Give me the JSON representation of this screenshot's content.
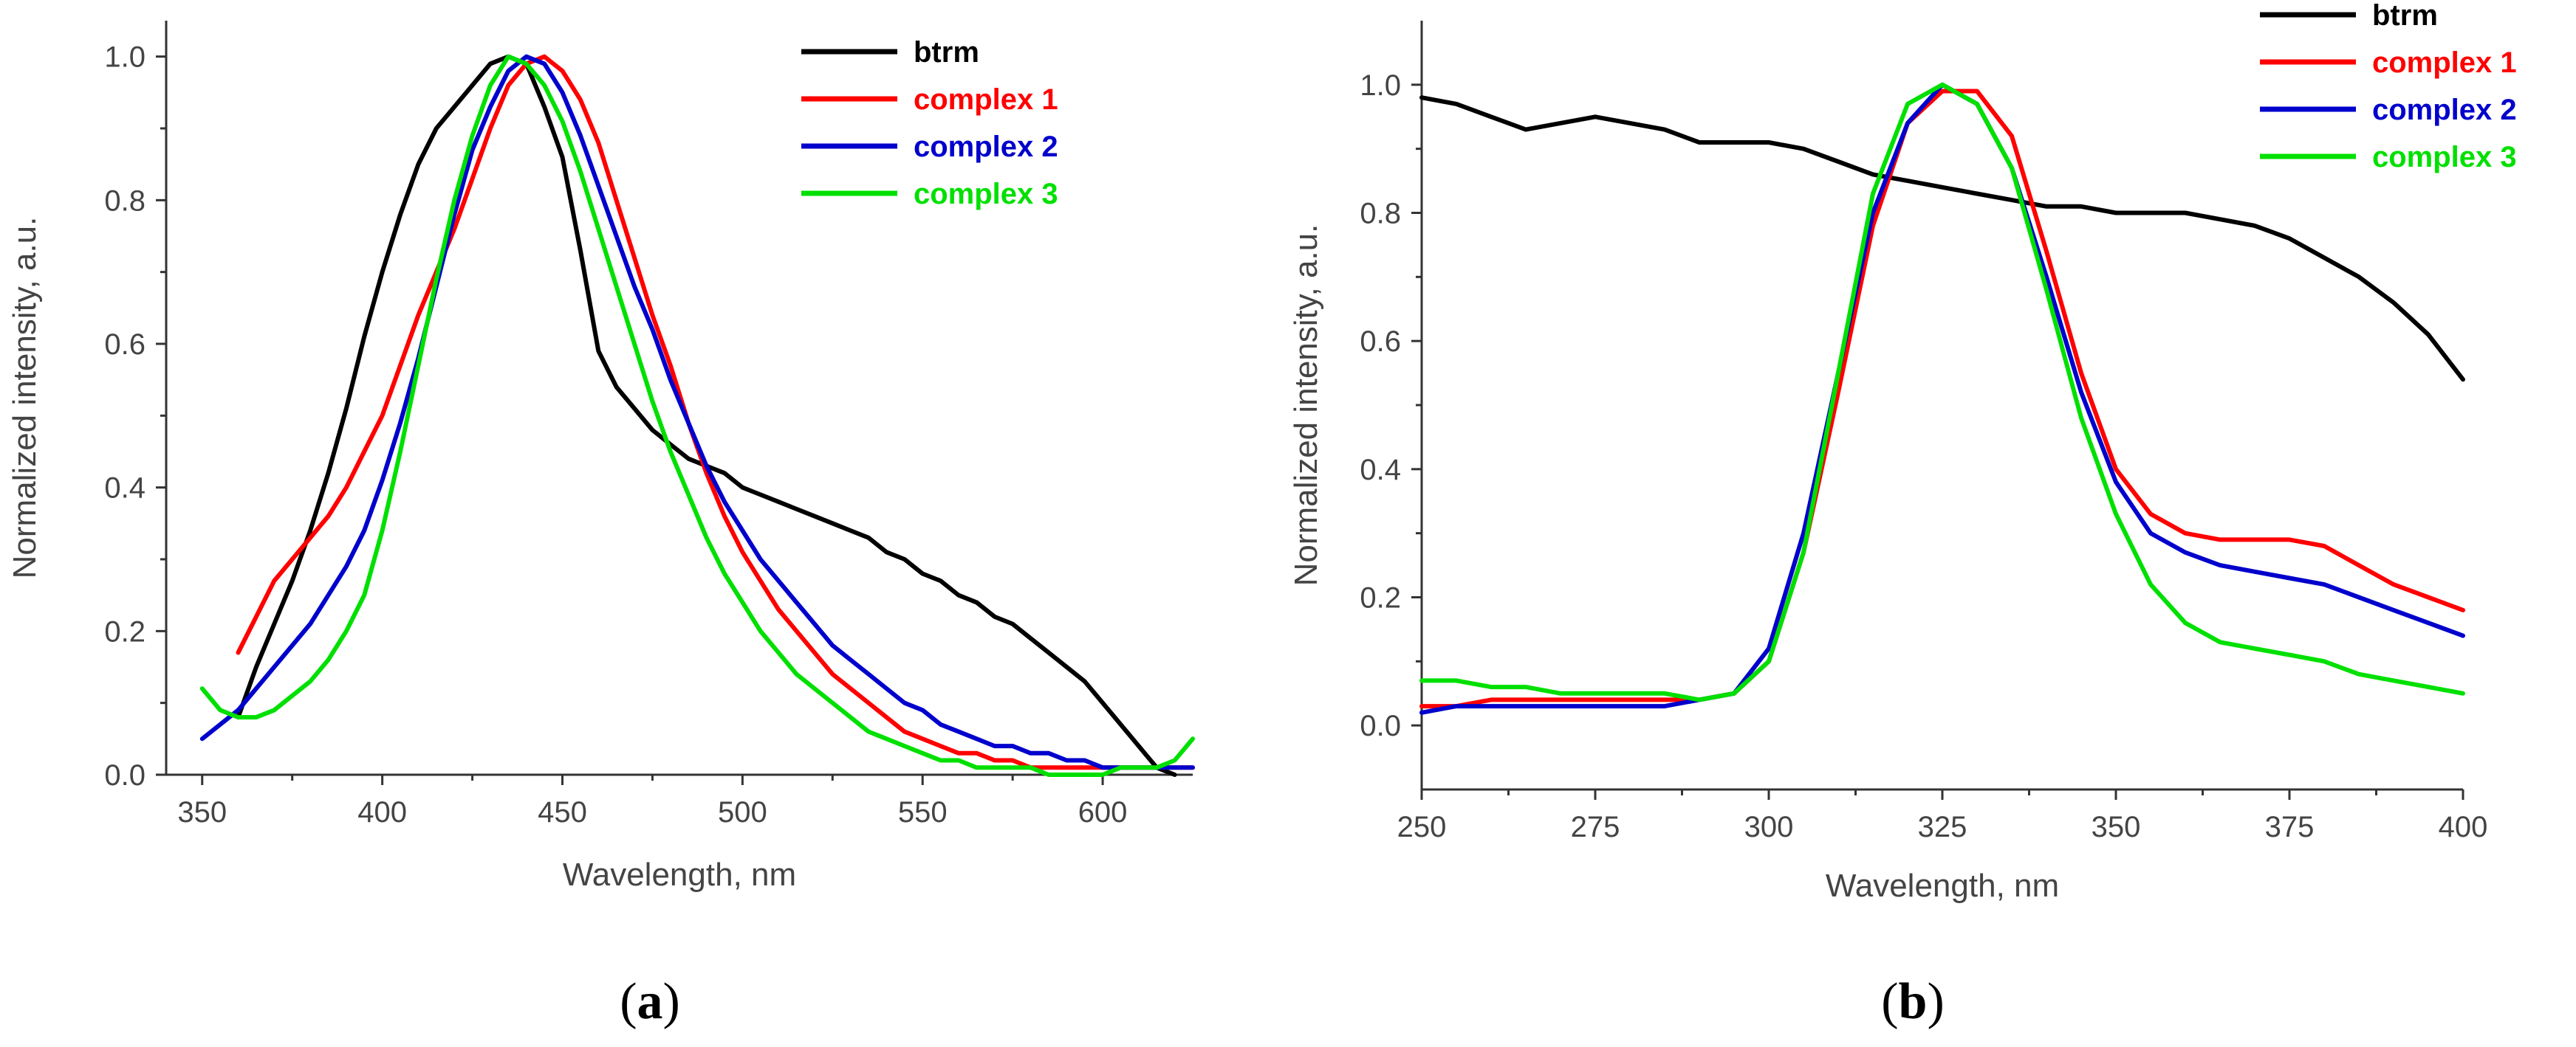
{
  "chart_data": [
    {
      "type": "line",
      "panel_label": "a",
      "xlabel": "Wavelength, nm",
      "ylabel": "Normalized intensity, a.u.",
      "xlim": [
        340,
        625
      ],
      "ylim": [
        0,
        1.05
      ],
      "xticks": [
        350,
        400,
        450,
        500,
        550,
        600
      ],
      "yticks": [
        0.0,
        0.2,
        0.4,
        0.6,
        0.8,
        1.0
      ],
      "legend_position": "top-right",
      "series": [
        {
          "name": "btrm",
          "color": "#000000",
          "x": [
            360,
            365,
            370,
            375,
            380,
            385,
            390,
            395,
            400,
            405,
            410,
            415,
            420,
            425,
            430,
            435,
            440,
            445,
            450,
            455,
            460,
            465,
            470,
            475,
            480,
            485,
            490,
            495,
            500,
            505,
            510,
            515,
            520,
            525,
            530,
            535,
            540,
            545,
            550,
            555,
            560,
            565,
            570,
            575,
            580,
            585,
            590,
            595,
            600,
            605,
            610,
            615,
            620
          ],
          "y": [
            0.08,
            0.15,
            0.21,
            0.27,
            0.34,
            0.42,
            0.51,
            0.61,
            0.7,
            0.78,
            0.85,
            0.9,
            0.93,
            0.96,
            0.99,
            1.0,
            0.99,
            0.93,
            0.86,
            0.73,
            0.59,
            0.54,
            0.51,
            0.48,
            0.46,
            0.44,
            0.43,
            0.42,
            0.4,
            0.39,
            0.38,
            0.37,
            0.36,
            0.35,
            0.34,
            0.33,
            0.31,
            0.3,
            0.28,
            0.27,
            0.25,
            0.24,
            0.22,
            0.21,
            0.19,
            0.17,
            0.15,
            0.13,
            0.1,
            0.07,
            0.04,
            0.01,
            0.0
          ]
        },
        {
          "name": "complex 1",
          "color": "#ff0000",
          "x": [
            360,
            365,
            370,
            375,
            380,
            385,
            390,
            395,
            400,
            405,
            410,
            415,
            420,
            425,
            430,
            435,
            440,
            445,
            450,
            455,
            460,
            465,
            470,
            475,
            480,
            485,
            490,
            495,
            500,
            505,
            510,
            515,
            520,
            525,
            530,
            535,
            540,
            545,
            550,
            555,
            560,
            565,
            570,
            575,
            580,
            585,
            590,
            595,
            600,
            605,
            610,
            615,
            620,
            625
          ],
          "y": [
            0.17,
            0.22,
            0.27,
            0.3,
            0.33,
            0.36,
            0.4,
            0.45,
            0.5,
            0.57,
            0.64,
            0.7,
            0.76,
            0.83,
            0.9,
            0.96,
            0.99,
            1.0,
            0.98,
            0.94,
            0.88,
            0.8,
            0.72,
            0.64,
            0.57,
            0.49,
            0.42,
            0.36,
            0.31,
            0.27,
            0.23,
            0.2,
            0.17,
            0.14,
            0.12,
            0.1,
            0.08,
            0.06,
            0.05,
            0.04,
            0.03,
            0.03,
            0.02,
            0.02,
            0.01,
            0.01,
            0.01,
            0.01,
            0.01,
            0.01,
            0.01,
            0.01,
            0.01,
            0.01
          ]
        },
        {
          "name": "complex 2",
          "color": "#0000cc",
          "x": [
            350,
            355,
            360,
            365,
            370,
            375,
            380,
            385,
            390,
            395,
            400,
            405,
            410,
            415,
            420,
            425,
            430,
            435,
            440,
            445,
            450,
            455,
            460,
            465,
            470,
            475,
            480,
            485,
            490,
            495,
            500,
            505,
            510,
            515,
            520,
            525,
            530,
            535,
            540,
            545,
            550,
            555,
            560,
            565,
            570,
            575,
            580,
            585,
            590,
            595,
            600,
            605,
            610,
            615,
            620,
            625
          ],
          "y": [
            0.05,
            0.07,
            0.09,
            0.12,
            0.15,
            0.18,
            0.21,
            0.25,
            0.29,
            0.34,
            0.41,
            0.49,
            0.58,
            0.68,
            0.78,
            0.87,
            0.93,
            0.98,
            1.0,
            0.99,
            0.95,
            0.89,
            0.82,
            0.75,
            0.68,
            0.62,
            0.55,
            0.49,
            0.43,
            0.38,
            0.34,
            0.3,
            0.27,
            0.24,
            0.21,
            0.18,
            0.16,
            0.14,
            0.12,
            0.1,
            0.09,
            0.07,
            0.06,
            0.05,
            0.04,
            0.04,
            0.03,
            0.03,
            0.02,
            0.02,
            0.01,
            0.01,
            0.01,
            0.01,
            0.01,
            0.01
          ]
        },
        {
          "name": "complex 3",
          "color": "#00e000",
          "x": [
            350,
            355,
            360,
            365,
            370,
            375,
            380,
            385,
            390,
            395,
            400,
            405,
            410,
            415,
            420,
            425,
            430,
            435,
            440,
            445,
            450,
            455,
            460,
            465,
            470,
            475,
            480,
            485,
            490,
            495,
            500,
            505,
            510,
            515,
            520,
            525,
            530,
            535,
            540,
            545,
            550,
            555,
            560,
            565,
            570,
            575,
            580,
            585,
            590,
            595,
            600,
            605,
            610,
            615,
            620,
            625
          ],
          "y": [
            0.12,
            0.09,
            0.08,
            0.08,
            0.09,
            0.11,
            0.13,
            0.16,
            0.2,
            0.25,
            0.34,
            0.45,
            0.57,
            0.69,
            0.8,
            0.89,
            0.96,
            1.0,
            0.99,
            0.96,
            0.91,
            0.84,
            0.76,
            0.68,
            0.6,
            0.52,
            0.45,
            0.39,
            0.33,
            0.28,
            0.24,
            0.2,
            0.17,
            0.14,
            0.12,
            0.1,
            0.08,
            0.06,
            0.05,
            0.04,
            0.03,
            0.02,
            0.02,
            0.01,
            0.01,
            0.01,
            0.01,
            0.0,
            0.0,
            0.0,
            0.0,
            0.01,
            0.01,
            0.01,
            0.02,
            0.05
          ]
        }
      ]
    },
    {
      "type": "line",
      "panel_label": "b",
      "xlabel": "Wavelength, nm",
      "ylabel": "Normalized intensity, a.u.",
      "xlim": [
        250,
        400
      ],
      "ylim": [
        -0.1,
        1.1
      ],
      "xticks": [
        250,
        275,
        300,
        325,
        350,
        375,
        400
      ],
      "yticks": [
        0.0,
        0.2,
        0.4,
        0.6,
        0.8,
        1.0
      ],
      "legend_position": "top-right",
      "series": [
        {
          "name": "btrm",
          "color": "#000000",
          "x": [
            250,
            255,
            260,
            265,
            270,
            275,
            280,
            285,
            290,
            295,
            300,
            305,
            310,
            315,
            320,
            325,
            330,
            335,
            340,
            345,
            350,
            355,
            360,
            365,
            370,
            375,
            380,
            385,
            390,
            395,
            400
          ],
          "y": [
            0.98,
            0.97,
            0.95,
            0.93,
            0.94,
            0.95,
            0.94,
            0.93,
            0.91,
            0.91,
            0.91,
            0.9,
            0.88,
            0.86,
            0.85,
            0.84,
            0.83,
            0.82,
            0.81,
            0.81,
            0.8,
            0.8,
            0.8,
            0.79,
            0.78,
            0.76,
            0.73,
            0.7,
            0.66,
            0.61,
            0.54
          ]
        },
        {
          "name": "complex 1",
          "color": "#ff0000",
          "x": [
            250,
            255,
            260,
            265,
            270,
            275,
            280,
            285,
            290,
            295,
            300,
            305,
            310,
            315,
            320,
            325,
            330,
            335,
            340,
            345,
            350,
            355,
            360,
            365,
            370,
            375,
            380,
            385,
            390,
            395,
            400
          ],
          "y": [
            0.03,
            0.03,
            0.04,
            0.04,
            0.04,
            0.04,
            0.04,
            0.04,
            0.04,
            0.05,
            0.1,
            0.27,
            0.52,
            0.78,
            0.94,
            0.99,
            0.99,
            0.92,
            0.74,
            0.55,
            0.4,
            0.33,
            0.3,
            0.29,
            0.29,
            0.29,
            0.28,
            0.25,
            0.22,
            0.2,
            0.18
          ]
        },
        {
          "name": "complex 2",
          "color": "#0000cc",
          "x": [
            250,
            255,
            260,
            265,
            270,
            275,
            280,
            285,
            290,
            295,
            300,
            305,
            310,
            315,
            320,
            325,
            330,
            335,
            340,
            345,
            350,
            355,
            360,
            365,
            370,
            375,
            380,
            385,
            390,
            395,
            400
          ],
          "y": [
            0.02,
            0.03,
            0.03,
            0.03,
            0.03,
            0.03,
            0.03,
            0.03,
            0.04,
            0.05,
            0.12,
            0.3,
            0.55,
            0.8,
            0.94,
            1.0,
            0.97,
            0.87,
            0.7,
            0.52,
            0.38,
            0.3,
            0.27,
            0.25,
            0.24,
            0.23,
            0.22,
            0.2,
            0.18,
            0.16,
            0.14
          ]
        },
        {
          "name": "complex 3",
          "color": "#00e000",
          "x": [
            250,
            255,
            260,
            265,
            270,
            275,
            280,
            285,
            290,
            295,
            300,
            305,
            310,
            315,
            320,
            325,
            330,
            335,
            340,
            345,
            350,
            355,
            360,
            365,
            370,
            375,
            380,
            385,
            390,
            395,
            400
          ],
          "y": [
            0.07,
            0.07,
            0.06,
            0.06,
            0.05,
            0.05,
            0.05,
            0.05,
            0.04,
            0.05,
            0.1,
            0.27,
            0.55,
            0.83,
            0.97,
            1.0,
            0.97,
            0.87,
            0.68,
            0.48,
            0.33,
            0.22,
            0.16,
            0.13,
            0.12,
            0.11,
            0.1,
            0.08,
            0.07,
            0.06,
            0.05
          ]
        }
      ]
    }
  ]
}
